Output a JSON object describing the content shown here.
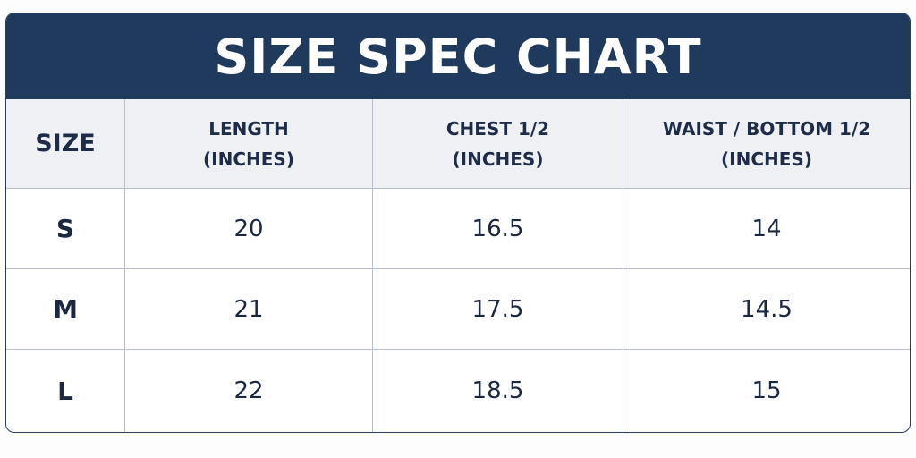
{
  "header": {
    "title": "SIZE SPEC CHART"
  },
  "table": {
    "columns": [
      [
        "SIZE"
      ],
      [
        "LENGTH",
        "(INCHES)"
      ],
      [
        "CHEST 1/2",
        "(INCHES)"
      ],
      [
        "WAIST / BOTTOM 1/2",
        "(INCHES)"
      ]
    ],
    "rows": [
      [
        "S",
        20,
        16.5,
        14
      ],
      [
        "M",
        21,
        17.5,
        14.5
      ],
      [
        "L",
        22,
        18.5,
        15
      ]
    ]
  }
}
